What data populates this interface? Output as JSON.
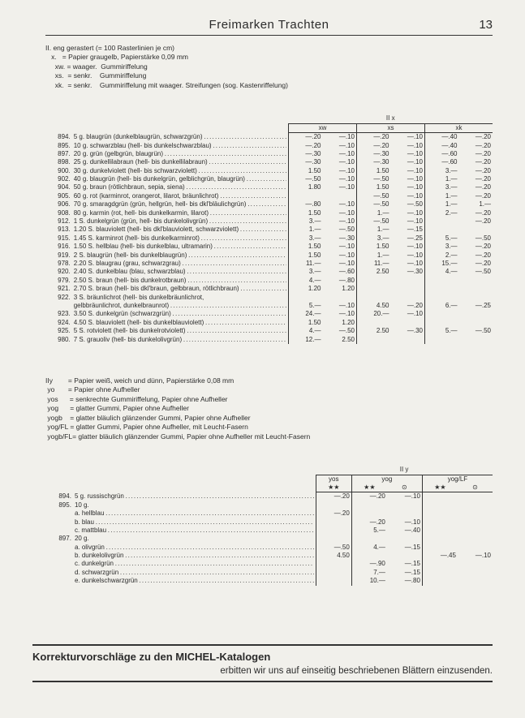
{
  "header": {
    "title": "Freimarken Trachten",
    "page": "13"
  },
  "intro": [
    "II. eng gerastert (= 100 Rasterlinien je cm)",
    "   x.   = Papier graugelb, Papierstärke 0,09 mm",
    "     xw. = waager.  Gummiriffelung",
    "     xs.  = senkr.    Gummiriffelung",
    "     xk.  = senkr.    Gummiriffelung mit waager. Streifungen (sog. Kastenriffelung)"
  ],
  "tableA": {
    "group_header": "II x",
    "cols": [
      "xw",
      "xs",
      "xk"
    ],
    "rows": [
      {
        "no": "894.",
        "desc": "5 g. blaugrün (dunkelblaugrün, schwarzgrün)",
        "v": [
          "—.20",
          "—.10",
          "—.20",
          "—.10",
          "—.40",
          "—.20"
        ]
      },
      {
        "no": "895.",
        "desc": "10 g. schwarzblau (hell- bis dunkelschwarzblau)",
        "v": [
          "—.20",
          "—.10",
          "—.20",
          "—.10",
          "—.40",
          "—.20"
        ]
      },
      {
        "no": "897.",
        "desc": "20 g. grün (gelbgrün, blaugrün)",
        "v": [
          "—.30",
          "—.10",
          "—.30",
          "—.10",
          "—.60",
          "—.20"
        ]
      },
      {
        "no": "898.",
        "desc": "25 g. dunkellilabraun (hell- bis dunkellilabraun)",
        "v": [
          "—.30",
          "—.10",
          "—.30",
          "—.10",
          "—.60",
          "—.20"
        ]
      },
      {
        "no": "900.",
        "desc": "30 g. dunkelviolett (hell- bis schwarzviolett)",
        "v": [
          "1.50",
          "—.10",
          "1.50",
          "—.10",
          "3.—",
          "—.20"
        ]
      },
      {
        "no": "902.",
        "desc": "40 g. blaugrün (hell- bis dunkelgrün, gelblichgrün, blaugrün)",
        "v": [
          "—.50",
          "—.10",
          "—.50",
          "—.10",
          "1.—",
          "—.20"
        ]
      },
      {
        "no": "904.",
        "desc": "50 g. braun (rötlichbraun, sepia, siena)",
        "v": [
          "1.80",
          "—.10",
          "1.50",
          "—.10",
          "3.—",
          "—.20"
        ]
      },
      {
        "no": "905.",
        "desc": "60 g. rot (karminrot, orangerot, lilarot, bräunlichrot)",
        "v": [
          "",
          "",
          "—.50",
          "—.10",
          "1.—",
          "—.20"
        ]
      },
      {
        "no": "906.",
        "desc": "70 g. smaragdgrün (grün, hellgrün, hell- bis dkl'bläulichgrün)",
        "v": [
          "—.80",
          "—.10",
          "—.50",
          "—.50",
          "1.—",
          "1.—"
        ]
      },
      {
        "no": "908.",
        "desc": "80 g. karmin (rot, hell- bis dunkelkarmin, lilarot)",
        "v": [
          "1.50",
          "—.10",
          "1.—",
          "—.10",
          "2.—",
          "—.20"
        ]
      },
      {
        "no": "912.",
        "desc": "1 S. dunkelgrün (grün, hell- bis dunkelolivgrün)",
        "v": [
          "3.—",
          "—.10",
          "—.50",
          "—.10",
          "",
          "—.20"
        ]
      },
      {
        "no": "913.",
        "desc": "1.20 S. blauviolett (hell- bis dkl'blauviolett, schwarzviolett)",
        "v": [
          "1.—",
          "—.50",
          "1.—",
          "—.15",
          "",
          ""
        ]
      },
      {
        "no": "915.",
        "desc": "1.45 S. karminrot (hell- bis dunkelkarminrot)",
        "v": [
          "3.—",
          "—.30",
          "3.—",
          "—.25",
          "5.—",
          "—.50"
        ]
      },
      {
        "no": "916.",
        "desc": "1.50 S. hellblau (hell- bis dunkelblau, ultramarin)",
        "v": [
          "1.50",
          "—.10",
          "1.50",
          "—.10",
          "3.—",
          "—.20"
        ]
      },
      {
        "no": "919.",
        "desc": "2 S. blaugrün (hell- bis dunkelblaugrün)",
        "v": [
          "1.50",
          "—.10",
          "1.—",
          "—.10",
          "2.—",
          "—.20"
        ]
      },
      {
        "no": "978.",
        "desc": "2.20 S. blaugrau (grau, schwarzgrau)",
        "v": [
          "11.—",
          "—.10",
          "11.—",
          "—.10",
          "15.—",
          "—.20"
        ]
      },
      {
        "no": "920.",
        "desc": "2.40 S. dunkelblau (blau, schwarzblau)",
        "v": [
          "3.—",
          "—.60",
          "2.50",
          "—.30",
          "4.—",
          "—.50"
        ]
      },
      {
        "no": "979.",
        "desc": "2.50 S. braun (hell- bis dunkelrotbraun)",
        "v": [
          "4.—",
          "—.80",
          "",
          "",
          "",
          ""
        ]
      },
      {
        "no": "921.",
        "desc": "2.70 S. braun (hell- bis dkl'braun, gelbbraun, rötlichbraun)",
        "v": [
          "1.20",
          "1.20",
          "",
          "",
          "",
          ""
        ]
      },
      {
        "no": "922.",
        "desc": "3 S. bräunlichrot (hell- bis dunkelbräunlichrot,",
        "v": [
          "",
          "",
          "",
          "",
          "",
          ""
        ],
        "nodots": true
      },
      {
        "no": "",
        "desc": "        gelbbräunlichrot, dunkelbraunrot)",
        "v": [
          "5.—",
          "—.10",
          "4.50",
          "—.20",
          "6.—",
          "—.25"
        ]
      },
      {
        "no": "923.",
        "desc": "3.50 S. dunkelgrün (schwarzgrün)",
        "v": [
          "24.—",
          "—.10",
          "20.—",
          "—.10",
          "",
          ""
        ]
      },
      {
        "no": "924.",
        "desc": "4.50 S. blauviolett (hell- bis dunkelblauviolett)",
        "v": [
          "1.50",
          "1.20",
          "",
          "",
          "",
          ""
        ]
      },
      {
        "no": "925.",
        "desc": "5 S. rotviolett (hell- bis dunkelrotviolett)",
        "v": [
          "4.—",
          "—.50",
          "2.50",
          "—.30",
          "5.—",
          "—.50"
        ]
      },
      {
        "no": "980.",
        "desc": "7 S. grauoliv (hell- bis dunkelolivgrün)",
        "v": [
          "12.—",
          "2.50",
          "",
          "",
          "",
          ""
        ]
      }
    ]
  },
  "legend": [
    "IIy        = Papier weiß, weich und dünn, Papierstärke 0,08 mm",
    " yo       = Papier ohne Aufheller",
    " yos      = senkrechte Gummiriffelung, Papier ohne Aufheller",
    " yog      = glatter Gummi, Papier ohne Aufheller",
    " yogb    = glatter bläulich glänzender Gummi, Papier ohne Aufheller",
    " yog/FL = glatter Gummi, Papier ohne Aufheller, mit Leucht-Fasern",
    " yogb/FL= glatter bläulich glänzender Gummi, Papier ohne Aufheller mit Leucht-Fasern"
  ],
  "tableB": {
    "group_header": "II y",
    "cols": [
      "yos",
      "yog",
      "yog/LF"
    ],
    "sym": [
      "★★",
      "★★",
      "⊙",
      "★★",
      "⊙"
    ],
    "rows": [
      {
        "no": "894.",
        "desc": "5 g. russischgrün",
        "v": [
          "—.20",
          "—.20",
          "—.10",
          "",
          ""
        ]
      },
      {
        "no": "895.",
        "desc": "10 g.",
        "v": [
          "",
          "",
          "",
          "",
          ""
        ],
        "nodots": true
      },
      {
        "no": "",
        "desc": "    a. hellblau",
        "v": [
          "—.20",
          "",
          "",
          "",
          ""
        ]
      },
      {
        "no": "",
        "desc": "    b. blau",
        "v": [
          "",
          "—.20",
          "—.10",
          "",
          ""
        ]
      },
      {
        "no": "",
        "desc": "    c. mattblau",
        "v": [
          "",
          "5.—",
          "—.40",
          "",
          ""
        ]
      },
      {
        "no": "897.",
        "desc": "20 g.",
        "v": [
          "",
          "",
          "",
          "",
          ""
        ],
        "nodots": true
      },
      {
        "no": "",
        "desc": "    a. olivgrün",
        "v": [
          "—.50",
          "4.—",
          "—.15",
          "",
          ""
        ]
      },
      {
        "no": "",
        "desc": "    b. dunkelolivgrün",
        "v": [
          "4.50",
          "",
          "",
          "—.45",
          "—.10"
        ]
      },
      {
        "no": "",
        "desc": "    c. dunkelgrün",
        "v": [
          "",
          "—.90",
          "—.15",
          "",
          ""
        ]
      },
      {
        "no": "",
        "desc": "    d. schwarzgrün",
        "v": [
          "",
          "7.—",
          "—.15",
          "",
          ""
        ]
      },
      {
        "no": "",
        "desc": "    e. dunkelschwarzgrün",
        "v": [
          "",
          "10.—",
          "—.80",
          "",
          ""
        ]
      }
    ]
  },
  "footer": {
    "title": "Korrekturvorschläge zu den MICHEL-Katalogen",
    "sub": "erbitten wir uns auf einseitig beschriebenen Blättern einzusenden."
  }
}
